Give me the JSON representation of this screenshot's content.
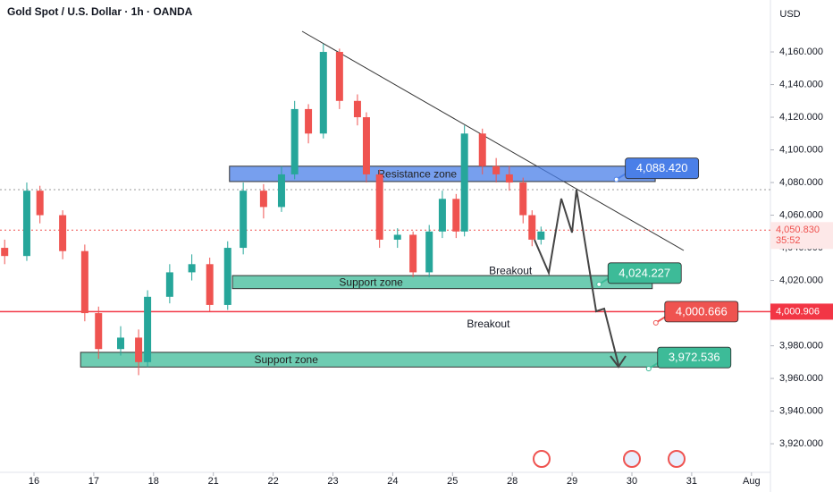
{
  "chart_data": {
    "type": "candlestick",
    "title": "Gold Spot / U.S. Dollar · 1h · OANDA",
    "currency": "USD",
    "xlim": [
      -0.568,
      12.317
    ],
    "xticks": [
      {
        "value": 0,
        "label": "16"
      },
      {
        "value": 1,
        "label": "17"
      },
      {
        "value": 2,
        "label": "18"
      },
      {
        "value": 3,
        "label": "21"
      },
      {
        "value": 4,
        "label": "22"
      },
      {
        "value": 5,
        "label": "23"
      },
      {
        "value": 6,
        "label": "24"
      },
      {
        "value": 7,
        "label": "25"
      },
      {
        "value": 8,
        "label": "28"
      },
      {
        "value": 9,
        "label": "29"
      },
      {
        "value": 10,
        "label": "30"
      },
      {
        "value": 11,
        "label": "31"
      },
      {
        "value": 12,
        "label": "Aug"
      }
    ],
    "ylim": [
      3902.5,
      4191.8
    ],
    "yticks": [
      {
        "value": 3920,
        "label": "3,920.000"
      },
      {
        "value": 3940,
        "label": "3,940.000"
      },
      {
        "value": 3960,
        "label": "3,960.000"
      },
      {
        "value": 3980,
        "label": "3,980.000"
      },
      {
        "value": 4000,
        "label": "4,000.000"
      },
      {
        "value": 4020,
        "label": "4,020.000"
      },
      {
        "value": 4040,
        "label": "4,040.000"
      },
      {
        "value": 4060,
        "label": "4,060.000"
      },
      {
        "value": 4080,
        "label": "4,080.000"
      },
      {
        "value": 4100,
        "label": "4,100.000"
      },
      {
        "value": 4120,
        "label": "4,120.000"
      },
      {
        "value": 4140,
        "label": "4,140.000"
      },
      {
        "value": 4160,
        "label": "4,160.000"
      }
    ],
    "up_color": "#26a69a",
    "down_color": "#ef5350",
    "candles": {
      "x": [
        -0.49,
        -0.12,
        0.1,
        0.48,
        0.85,
        1.08,
        1.45,
        1.75,
        1.9,
        2.27,
        2.64,
        2.94,
        3.24,
        3.5,
        3.84,
        4.14,
        4.36,
        4.59,
        4.84,
        5.11,
        5.41,
        5.56,
        5.78,
        6.08,
        6.34,
        6.61,
        6.83,
        7.06,
        7.2,
        7.5,
        7.73,
        7.95,
        8.18,
        8.33,
        8.48
      ],
      "open": [
        4040,
        4035,
        4075,
        4060,
        4038,
        4000,
        3978,
        3985,
        3970,
        4010,
        4025,
        4030,
        4005,
        4040,
        4075,
        4065,
        4085,
        4125,
        4110,
        4160,
        4130,
        4120,
        4085,
        4045,
        4048,
        4025,
        4050,
        4070,
        4050,
        4110,
        4090,
        4085,
        4080,
        4060,
        4045
      ],
      "high": [
        4045,
        4080,
        4078,
        4063,
        4042,
        4004,
        3992,
        3990,
        4014,
        4030,
        4036,
        4034,
        4044,
        4080,
        4079,
        4090,
        4130,
        4128,
        4165,
        4162,
        4134,
        4123,
        4088,
        4052,
        4050,
        4054,
        4075,
        4073,
        4115,
        4113,
        4095,
        4090,
        4083,
        4063,
        4053
      ],
      "low": [
        4030,
        4032,
        4055,
        4033,
        3995,
        3972,
        3974,
        3962,
        3967,
        4006,
        4020,
        4001,
        4002,
        4036,
        4058,
        4062,
        4082,
        4104,
        4107,
        4125,
        4115,
        4080,
        4040,
        4040,
        4022,
        4022,
        4046,
        4046,
        4047,
        4085,
        4080,
        4075,
        4055,
        4041,
        4042
      ],
      "close": [
        4035,
        4075,
        4060,
        4038,
        4000,
        3978,
        3985,
        3970,
        4010,
        4025,
        4030,
        4005,
        4040,
        4075,
        4065,
        4085,
        4125,
        4110,
        4160,
        4130,
        4120,
        4085,
        4045,
        4048,
        4025,
        4050,
        4070,
        4050,
        4110,
        4090,
        4085,
        4080,
        4060,
        4045,
        4050
      ]
    },
    "zones": [
      {
        "label": "Resistance zone",
        "low": 4080.6,
        "high": 4090,
        "x_start": 3.27,
        "x_end": 10.39,
        "color": "#4a7fe8"
      },
      {
        "label": "Support zone",
        "low": 4015,
        "high": 4023,
        "x_start": 3.32,
        "x_end": 10.34,
        "color": "#3dbb98"
      },
      {
        "label": "Support zone",
        "low": 3967,
        "high": 3976,
        "x_start": 0.78,
        "x_end": 10.52,
        "color": "#3dbb98"
      }
    ],
    "callouts": [
      {
        "value": 4088.42,
        "label": "4,088.420",
        "x": 9.89,
        "color": "#4a7fe8"
      },
      {
        "value": 4024.227,
        "label": "4,024.227",
        "x": 9.6,
        "color": "#3dbb98"
      },
      {
        "value": 4000.666,
        "label": "4,000.666",
        "x": 10.55,
        "color": "#ef5350"
      },
      {
        "value": 3972.536,
        "label": "3,972.536",
        "x": 10.43,
        "color": "#3dbb98"
      }
    ],
    "notes": [
      {
        "text": "Breakout",
        "x": 7.97,
        "value": 4025.5
      },
      {
        "text": "Breakout",
        "x": 7.6,
        "value": 3993
      }
    ],
    "current_price": {
      "value": 4050.83,
      "label": "4,050.830",
      "countdown": "35:52"
    },
    "level_line": {
      "value": 4000.906,
      "label": "4,000.906",
      "color": "#f23645"
    }
  }
}
